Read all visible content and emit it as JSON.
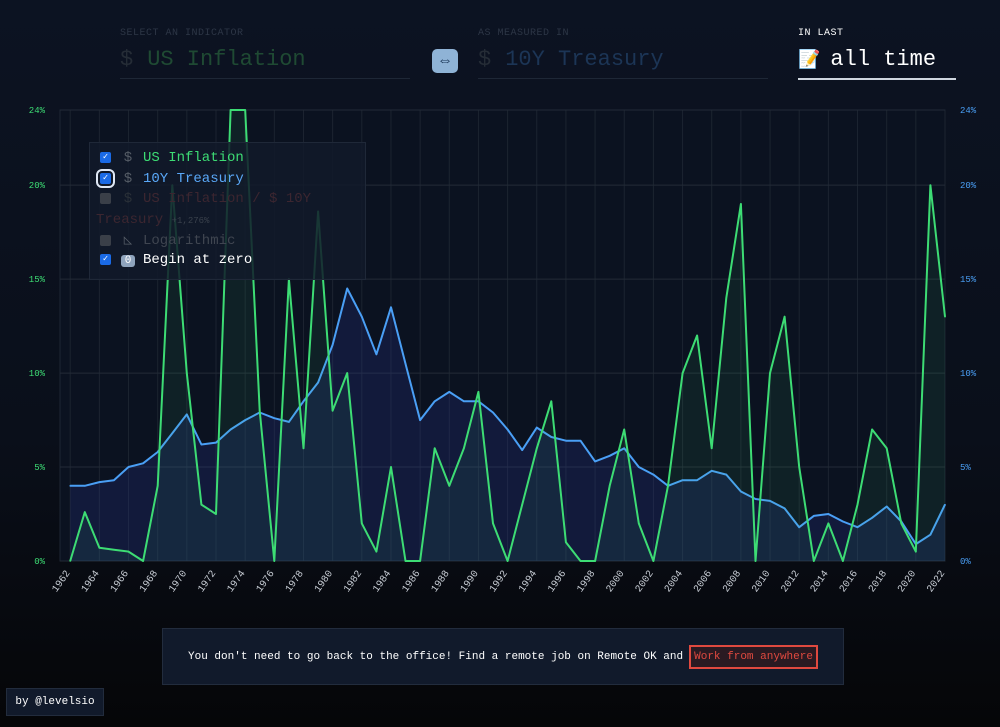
{
  "header": {
    "indicator_label": "SELECT AN INDICATOR",
    "indicator_icon": "$",
    "indicator_value": "US Inflation",
    "swap_icon": "left-right-arrow-icon",
    "swap_glyph": "⇔",
    "measured_label": "AS MEASURED IN",
    "measured_icon": "$",
    "measured_value": "10Y Treasury",
    "range_label": "IN LAST",
    "range_icon": "📝",
    "range_value": "all time"
  },
  "legend": {
    "items": [
      {
        "label": "US Inflation",
        "icon": "$",
        "checked": true
      },
      {
        "label": "10Y Treasury",
        "icon": "$",
        "checked": true
      },
      {
        "label": "US Inflation / $ 10Y",
        "label2": "Treasury",
        "icon": "$",
        "badge": "+1,276%",
        "checked": false
      },
      {
        "label": "Logarithmic",
        "icon": "◺",
        "checked": false
      },
      {
        "label": "Begin at zero",
        "icon": "0",
        "checked": true
      }
    ]
  },
  "banner": {
    "text": "You don't need to go back to the office! Find a remote job on Remote OK and",
    "link": "Work from anywhere"
  },
  "credit": "by @levelsio",
  "colors": {
    "inflation": "#3ddc74",
    "treasury": "#4a9ff5",
    "bg": "#0a0f1a"
  },
  "chart_data": {
    "type": "line",
    "grid": true,
    "legend_position": "top-left",
    "ylim": [
      0,
      24
    ],
    "y_ticks_left": [
      "0%",
      "5%",
      "10%",
      "15%",
      "20%",
      "24%"
    ],
    "y_ticks_right": [
      "0%",
      "5%",
      "10%",
      "15%",
      "20%",
      "24%"
    ],
    "x_ticks": [
      "1962",
      "1964",
      "1966",
      "1968",
      "1970",
      "1972",
      "1974",
      "1976",
      "1978",
      "1980",
      "1982",
      "1984",
      "1986",
      "1988",
      "1990",
      "1992",
      "1994",
      "1996",
      "1998",
      "2000",
      "2002",
      "2004",
      "2006",
      "2008",
      "2010",
      "2012",
      "2014",
      "2016",
      "2018",
      "2020",
      "2022"
    ],
    "x": [
      1962,
      1963,
      1964,
      1965,
      1966,
      1967,
      1968,
      1969,
      1970,
      1971,
      1972,
      1973,
      1974,
      1975,
      1976,
      1977,
      1978,
      1979,
      1980,
      1981,
      1982,
      1983,
      1984,
      1985,
      1986,
      1987,
      1988,
      1989,
      1990,
      1991,
      1992,
      1993,
      1994,
      1995,
      1996,
      1997,
      1998,
      1999,
      2000,
      2001,
      2002,
      2003,
      2004,
      2005,
      2006,
      2007,
      2008,
      2009,
      2010,
      2011,
      2012,
      2013,
      2014,
      2015,
      2016,
      2017,
      2018,
      2019,
      2020,
      2021,
      2022
    ],
    "series": [
      {
        "name": "US Inflation",
        "values": [
          0,
          2.6,
          0.7,
          0.6,
          0.5,
          0,
          4,
          20,
          10,
          3,
          2.5,
          24,
          24,
          8,
          0,
          15,
          6,
          18.6,
          8,
          10,
          2,
          0.5,
          5,
          0,
          0,
          6,
          4,
          6,
          9,
          2,
          0,
          3,
          6,
          8.5,
          1,
          0,
          0,
          4,
          7,
          2,
          0,
          4,
          10,
          12,
          6,
          14,
          19,
          0,
          10,
          13,
          5,
          0,
          2,
          0,
          3,
          7,
          6,
          2,
          0.5,
          20,
          13
        ]
      },
      {
        "name": "10Y Treasury",
        "values": [
          4,
          4,
          4.2,
          4.3,
          5,
          5.2,
          5.8,
          6.8,
          7.8,
          6.2,
          6.3,
          7,
          7.5,
          7.9,
          7.6,
          7.4,
          8.5,
          9.5,
          11.5,
          14.5,
          13,
          11,
          13.5,
          10.5,
          7.5,
          8.5,
          9,
          8.5,
          8.5,
          7.9,
          7,
          5.9,
          7.1,
          6.6,
          6.4,
          6.4,
          5.3,
          5.6,
          6,
          5,
          4.6,
          4,
          4.3,
          4.3,
          4.8,
          4.6,
          3.7,
          3.3,
          3.2,
          2.8,
          1.8,
          2.4,
          2.5,
          2.1,
          1.8,
          2.3,
          2.9,
          2.1,
          0.9,
          1.4,
          3
        ]
      }
    ]
  }
}
